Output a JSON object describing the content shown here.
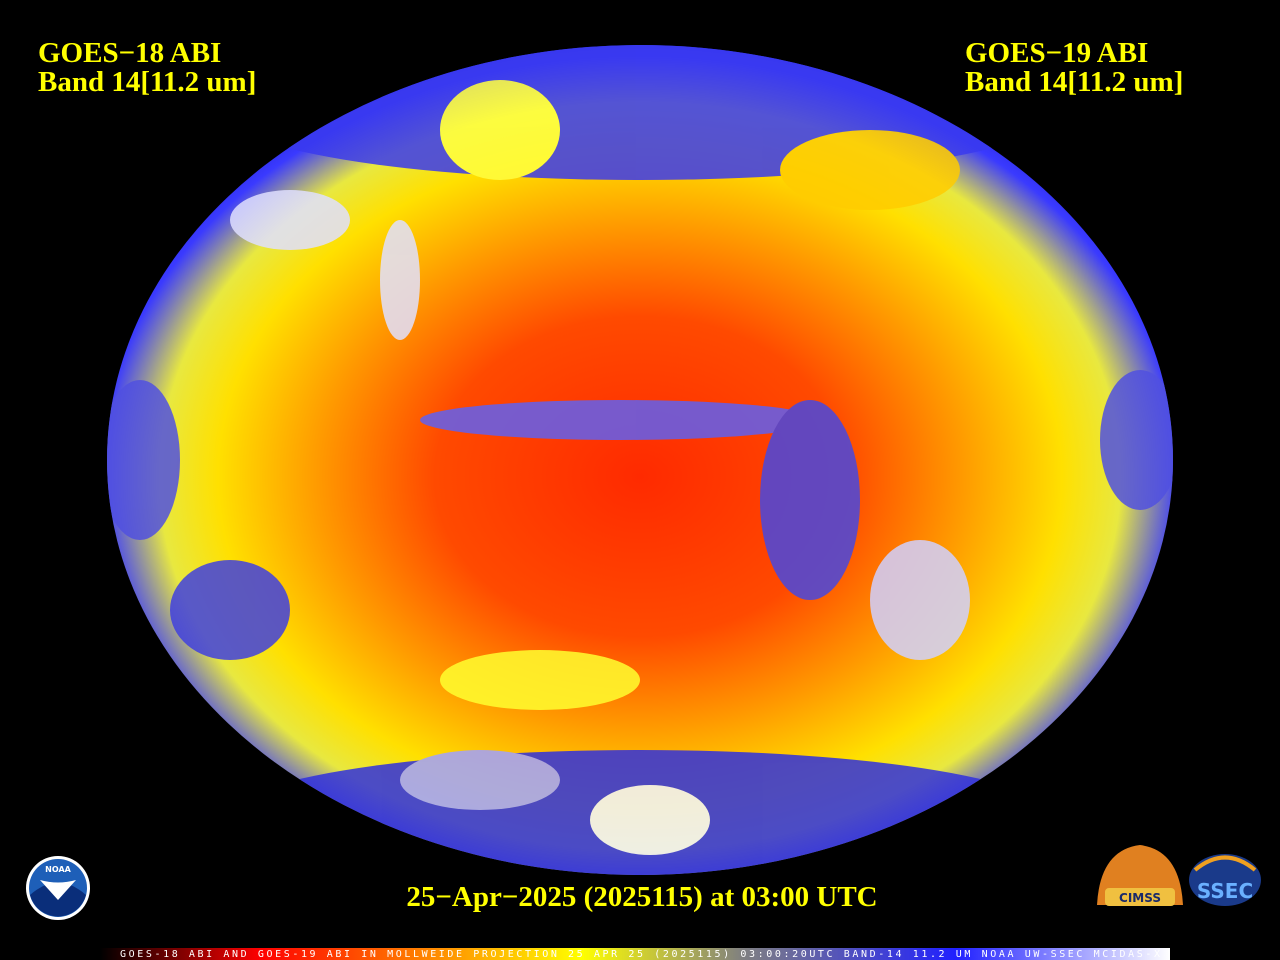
{
  "header": {
    "left": {
      "line1": "GOES−18 ABI",
      "line2": "Band 14[11.2 um]"
    },
    "right": {
      "line1": "GOES−19 ABI",
      "line2": "Band 14[11.2 um]"
    }
  },
  "timestamp": "25−Apr−2025 (2025115) at 03:00 UTC",
  "logos": {
    "noaa": "NOAA",
    "cimss": "CIMSS",
    "ssec": "SSEC"
  },
  "footer": "GOES-18 ABI AND GOES-19 ABI IN MOLLWEIDE PROJECTION 25 APR 25 (2025115) 03:00:20UTC BAND-14 11.2 UM NOAA UW-SSEC MCIDAS-X"
}
